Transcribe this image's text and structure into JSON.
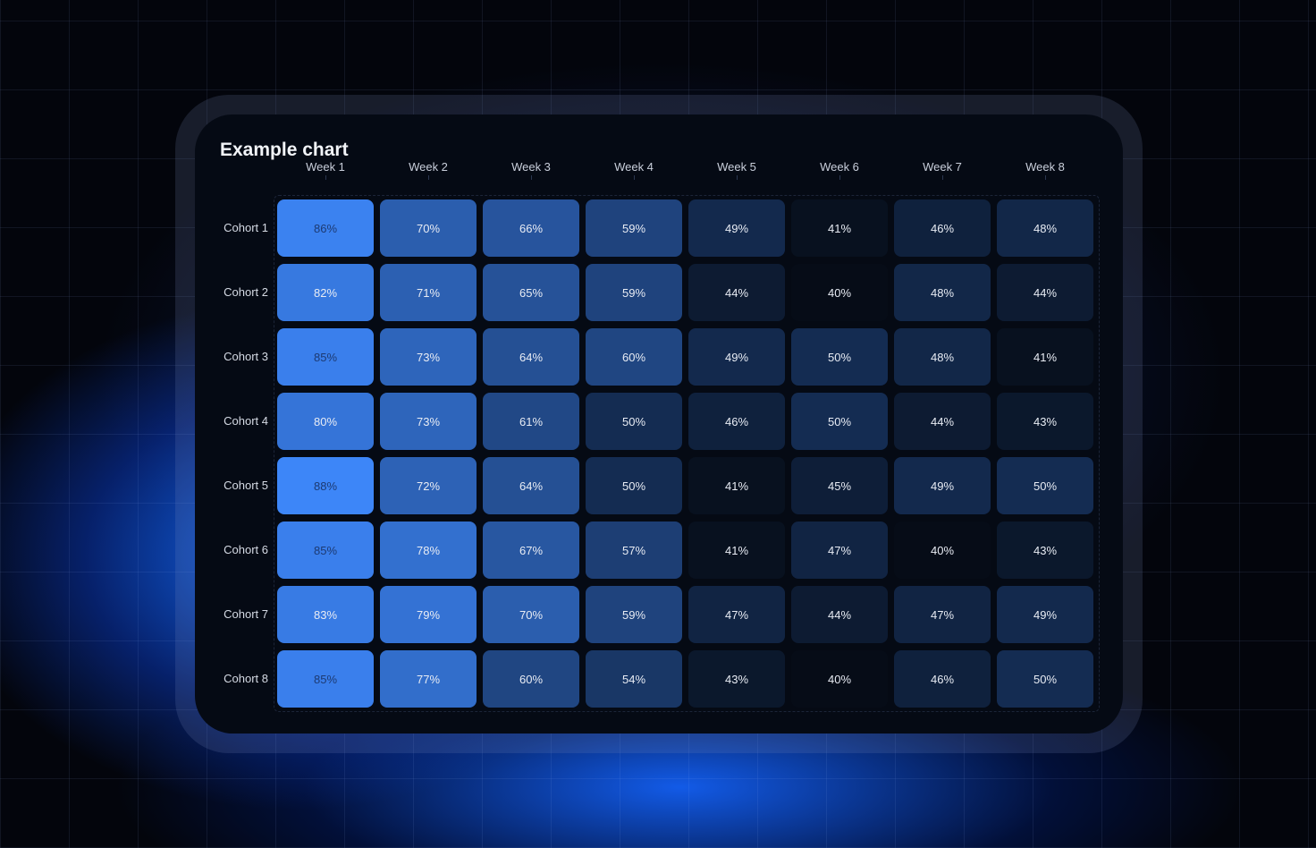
{
  "chart_data": {
    "type": "heatmap",
    "title": "Example chart",
    "columns": [
      "Week 1",
      "Week 2",
      "Week 3",
      "Week 4",
      "Week 5",
      "Week 6",
      "Week 7",
      "Week 8"
    ],
    "rows": [
      "Cohort 1",
      "Cohort 2",
      "Cohort 3",
      "Cohort 4",
      "Cohort 5",
      "Cohort 6",
      "Cohort 7",
      "Cohort 8"
    ],
    "values": [
      [
        86,
        70,
        66,
        59,
        49,
        41,
        46,
        48
      ],
      [
        82,
        71,
        65,
        59,
        44,
        40,
        48,
        44
      ],
      [
        85,
        73,
        64,
        60,
        49,
        50,
        48,
        41
      ],
      [
        80,
        73,
        61,
        50,
        46,
        50,
        44,
        43
      ],
      [
        88,
        72,
        64,
        50,
        41,
        45,
        49,
        50
      ],
      [
        85,
        78,
        67,
        57,
        41,
        47,
        40,
        43
      ],
      [
        83,
        79,
        70,
        59,
        47,
        44,
        47,
        49
      ],
      [
        85,
        77,
        60,
        54,
        43,
        40,
        46,
        50
      ]
    ],
    "unit": "%",
    "color_scale": {
      "low": "#060c17",
      "high": "#3d86f8"
    }
  }
}
